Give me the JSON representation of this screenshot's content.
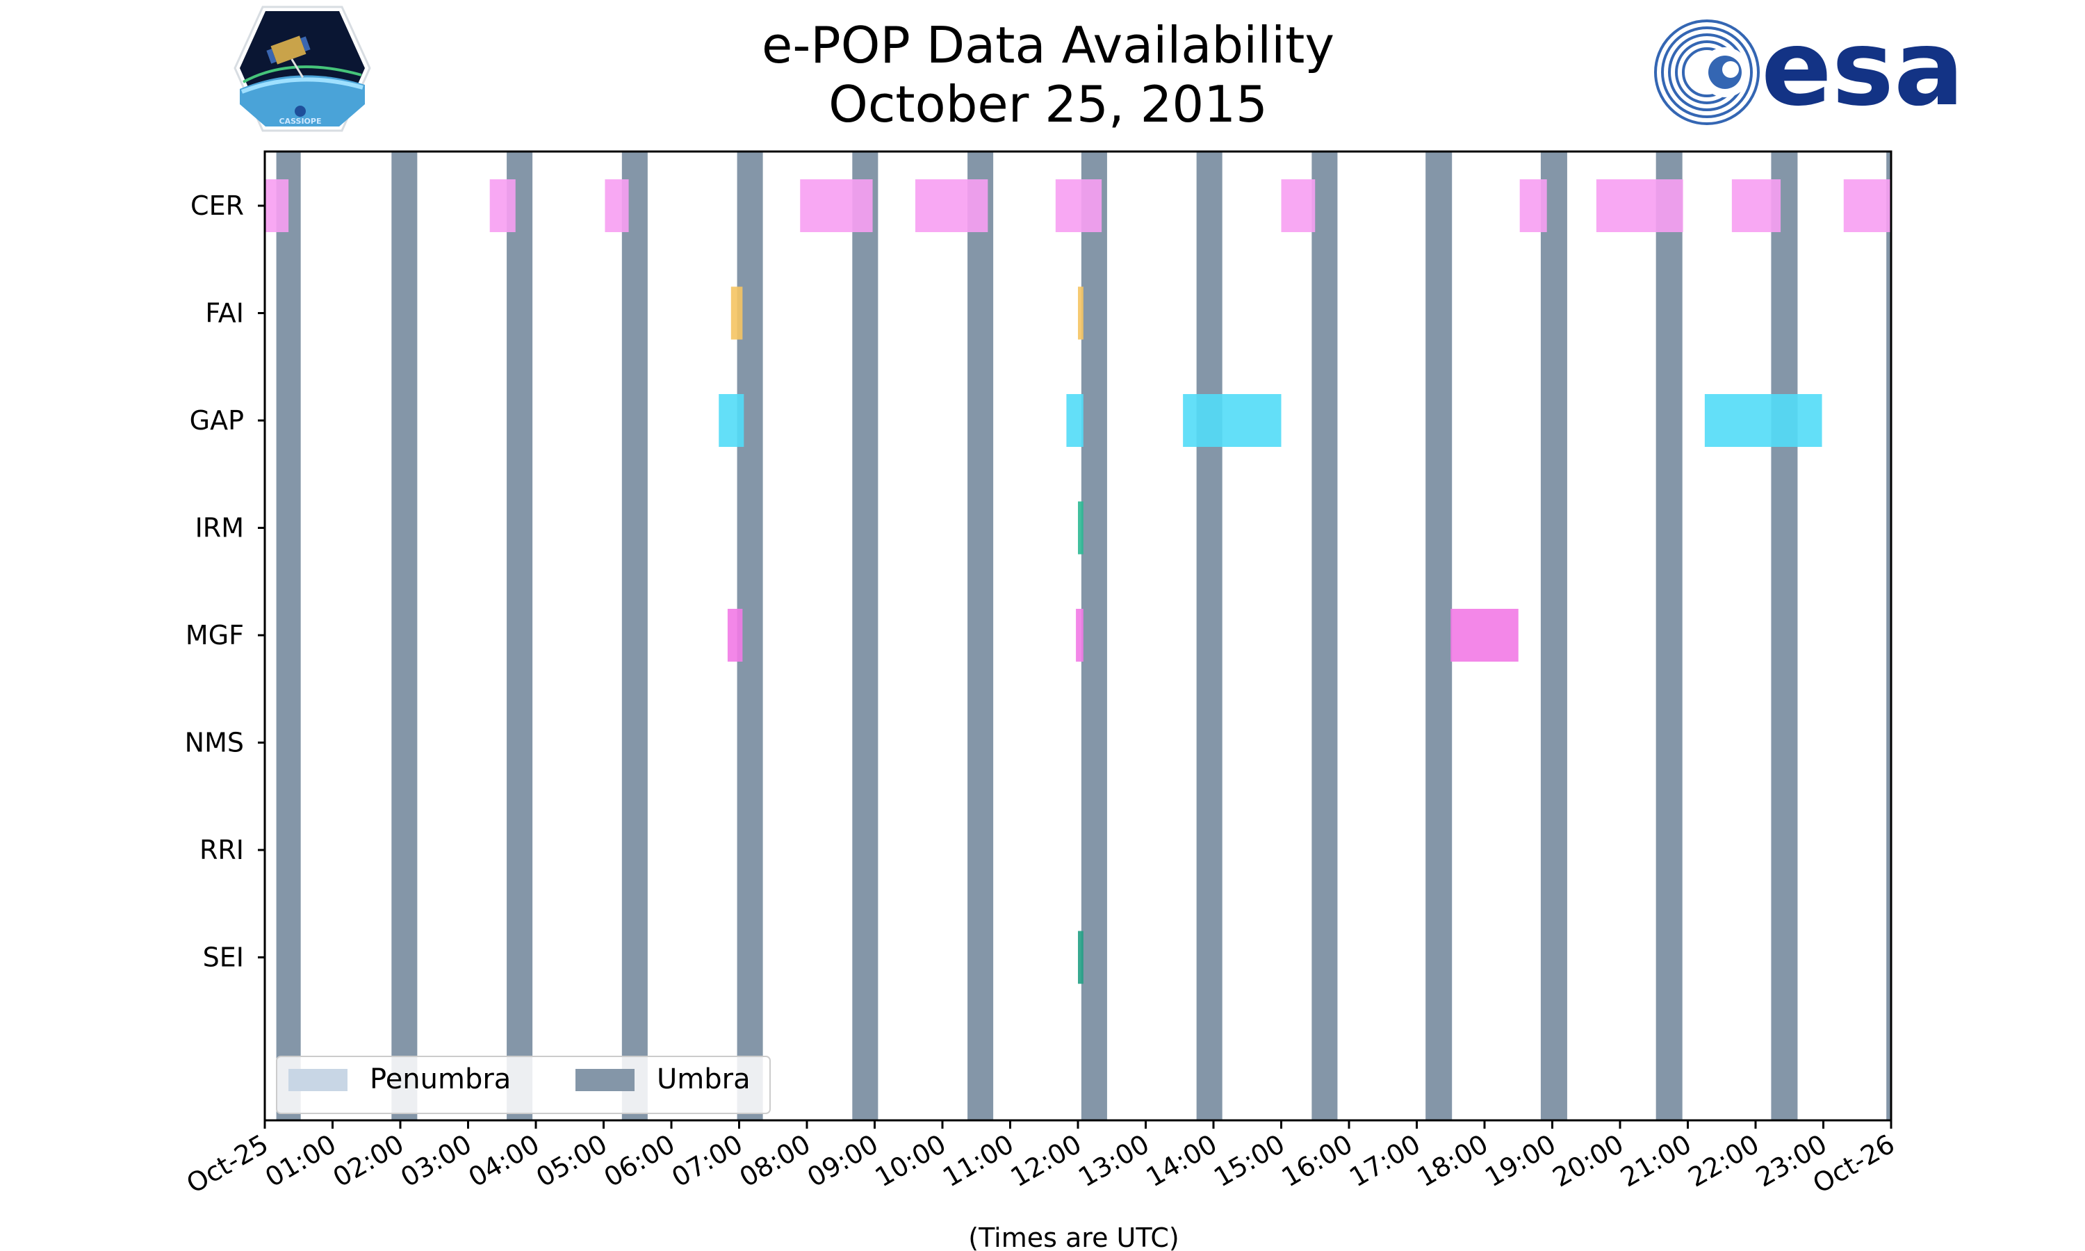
{
  "title": {
    "line1": "e-POP Data Availability",
    "line2": "October 25, 2015"
  },
  "logos": {
    "left": {
      "name": "cassiope-logo",
      "text": "CASSIOPE"
    },
    "right": {
      "name": "esa-logo",
      "text": "esa"
    }
  },
  "colors": {
    "umbra": "#8496a8",
    "penumbra": "#c8d6e5",
    "CER": "#f79ef2",
    "FAI": "#f5c463",
    "GAP": "#52dbf7",
    "IRM": "#2eb894",
    "MGF": "#f27ae6",
    "NMS": "#888888",
    "RRI": "#888888",
    "SEI": "#24a085"
  },
  "chart_data": {
    "type": "timeline",
    "xlabel": "(Times are UTC)",
    "x_range_hours": [
      0,
      24
    ],
    "x_ticks": [
      "Oct-25",
      "01:00",
      "02:00",
      "03:00",
      "04:00",
      "05:00",
      "06:00",
      "07:00",
      "08:00",
      "09:00",
      "10:00",
      "11:00",
      "12:00",
      "13:00",
      "14:00",
      "15:00",
      "16:00",
      "17:00",
      "18:00",
      "19:00",
      "20:00",
      "21:00",
      "22:00",
      "23:00",
      "Oct-26"
    ],
    "instruments": [
      "CER",
      "FAI",
      "GAP",
      "IRM",
      "MGF",
      "NMS",
      "RRI",
      "SEI"
    ],
    "legend": {
      "placement": "lower-left",
      "entries": [
        {
          "label": "Penumbra",
          "color_key": "penumbra"
        },
        {
          "label": "Umbra",
          "color_key": "umbra"
        }
      ]
    },
    "umbra": [
      [
        0.17,
        0.53
      ],
      [
        1.87,
        2.25
      ],
      [
        3.57,
        3.95
      ],
      [
        5.27,
        5.65
      ],
      [
        6.97,
        7.35
      ],
      [
        8.67,
        9.05
      ],
      [
        10.37,
        10.75
      ],
      [
        12.05,
        12.43
      ],
      [
        13.75,
        14.13
      ],
      [
        15.45,
        15.83
      ],
      [
        17.13,
        17.52
      ],
      [
        18.83,
        19.22
      ],
      [
        20.53,
        20.92
      ],
      [
        22.23,
        22.62
      ],
      [
        23.93,
        24.0
      ]
    ],
    "segments": {
      "CER": [
        [
          0.0,
          0.35
        ],
        [
          3.32,
          3.7
        ],
        [
          5.02,
          5.37
        ],
        [
          7.9,
          8.97
        ],
        [
          9.6,
          10.67
        ],
        [
          11.67,
          12.35
        ],
        [
          15.0,
          15.5
        ],
        [
          18.52,
          18.92
        ],
        [
          19.65,
          20.93
        ],
        [
          21.65,
          22.37
        ],
        [
          23.3,
          24.0
        ]
      ],
      "FAI": [
        [
          6.88,
          7.05
        ],
        [
          12.0,
          12.08
        ]
      ],
      "GAP": [
        [
          6.7,
          7.07
        ],
        [
          11.83,
          12.08
        ],
        [
          13.55,
          15.0
        ],
        [
          21.25,
          22.98
        ]
      ],
      "IRM": [
        [
          12.0,
          12.08
        ]
      ],
      "MGF": [
        [
          6.83,
          7.05
        ],
        [
          11.97,
          12.08
        ],
        [
          17.5,
          18.5
        ]
      ],
      "NMS": [],
      "RRI": [],
      "SEI": [
        [
          12.0,
          12.08
        ]
      ]
    }
  }
}
